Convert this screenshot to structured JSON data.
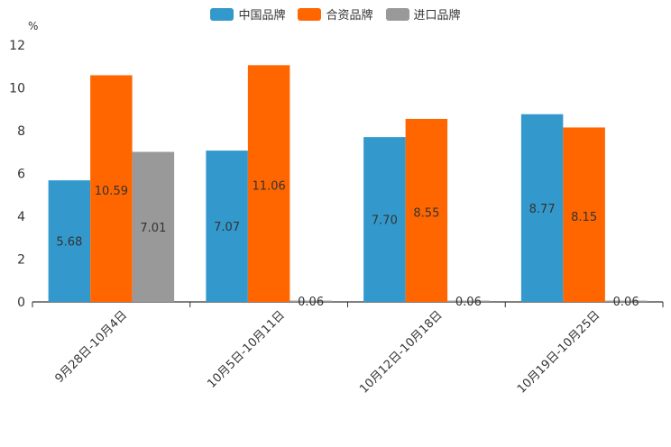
{
  "chart_data": {
    "type": "bar",
    "title": "",
    "ylabel": "%",
    "xlabel": "",
    "ylim": [
      0,
      12
    ],
    "yticks": [
      0,
      2,
      4,
      6,
      8,
      10,
      12
    ],
    "categories": [
      "9月28日-10月4日",
      "10月5日-10月11日",
      "10月12日-10月18日",
      "10月19日-10月25日"
    ],
    "series": [
      {
        "name": "中国品牌",
        "color": "#3399cc",
        "values": [
          5.68,
          7.07,
          7.7,
          8.77
        ],
        "labels": [
          "5.68",
          "7.07",
          "7.70",
          "8.77"
        ]
      },
      {
        "name": "合资品牌",
        "color": "#ff6600",
        "values": [
          10.59,
          11.06,
          8.55,
          8.15
        ],
        "labels": [
          "10.59",
          "11.06",
          "8.55",
          "8.15"
        ]
      },
      {
        "name": "进口品牌",
        "color": "#999999",
        "values": [
          7.01,
          0.06,
          0.06,
          0.06
        ],
        "labels": [
          "7.01",
          "0.06",
          "0.06",
          "0.06"
        ]
      }
    ]
  }
}
